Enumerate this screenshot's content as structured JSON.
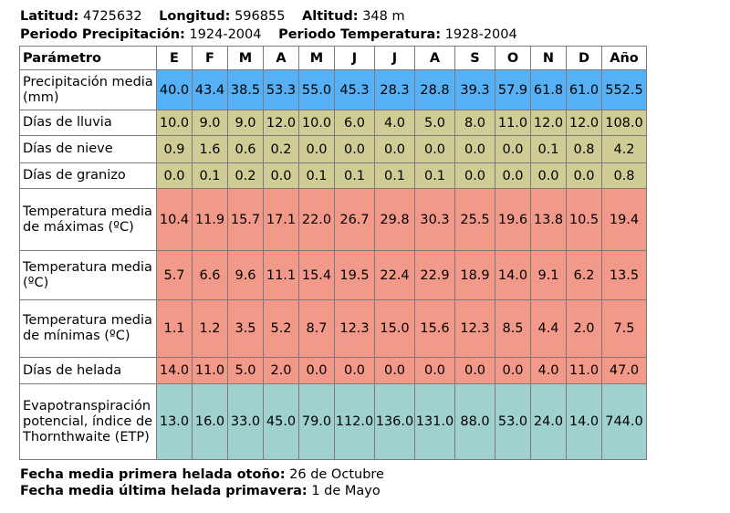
{
  "header": {
    "latitud_label": "Latitud:",
    "latitud_value": "4725632",
    "longitud_label": "Longitud:",
    "longitud_value": "596855",
    "altitud_label": "Altitud:",
    "altitud_value": "348 m",
    "periodo_precip_label": "Periodo Precipitación:",
    "periodo_precip_value": "1924-2004",
    "periodo_temp_label": "Periodo Temperatura:",
    "periodo_temp_value": "1928-2004"
  },
  "table": {
    "columns": [
      "Parámetro",
      "E",
      "F",
      "M",
      "A",
      "M",
      "J",
      "J",
      "A",
      "S",
      "O",
      "N",
      "D",
      "Año"
    ],
    "rows": [
      {
        "label": "Precipitación media (mm)",
        "values": [
          "40.0",
          "43.4",
          "38.5",
          "53.3",
          "55.0",
          "45.3",
          "28.3",
          "28.8",
          "39.3",
          "57.9",
          "61.8",
          "61.0",
          "552.5"
        ]
      },
      {
        "label": "Días de lluvia",
        "values": [
          "10.0",
          "9.0",
          "9.0",
          "12.0",
          "10.0",
          "6.0",
          "4.0",
          "5.0",
          "8.0",
          "11.0",
          "12.0",
          "12.0",
          "108.0"
        ]
      },
      {
        "label": "Días de nieve",
        "values": [
          "0.9",
          "1.6",
          "0.6",
          "0.2",
          "0.0",
          "0.0",
          "0.0",
          "0.0",
          "0.0",
          "0.0",
          "0.1",
          "0.8",
          "4.2"
        ]
      },
      {
        "label": "Días de granizo",
        "values": [
          "0.0",
          "0.1",
          "0.2",
          "0.0",
          "0.1",
          "0.1",
          "0.1",
          "0.1",
          "0.0",
          "0.0",
          "0.0",
          "0.0",
          "0.8"
        ]
      },
      {
        "label": "Temperatura media de máximas (ºC)",
        "values": [
          "10.4",
          "11.9",
          "15.7",
          "17.1",
          "22.0",
          "26.7",
          "29.8",
          "30.3",
          "25.5",
          "19.6",
          "13.8",
          "10.5",
          "19.4"
        ]
      },
      {
        "label": "Temperatura media (ºC)",
        "values": [
          "5.7",
          "6.6",
          "9.6",
          "11.1",
          "15.4",
          "19.5",
          "22.4",
          "22.9",
          "18.9",
          "14.0",
          "9.1",
          "6.2",
          "13.5"
        ]
      },
      {
        "label": "Temperatura media de mínimas (ºC)",
        "values": [
          "1.1",
          "1.2",
          "3.5",
          "5.2",
          "8.7",
          "12.3",
          "15.0",
          "15.6",
          "12.3",
          "8.5",
          "4.4",
          "2.0",
          "7.5"
        ]
      },
      {
        "label": "Días de helada",
        "values": [
          "14.0",
          "11.0",
          "5.0",
          "2.0",
          "0.0",
          "0.0",
          "0.0",
          "0.0",
          "0.0",
          "0.0",
          "4.0",
          "11.0",
          "47.0"
        ]
      },
      {
        "label": "Evapotranspiración potencial, índice de Thornthwaite (ETP)",
        "values": [
          "13.0",
          "16.0",
          "33.0",
          "45.0",
          "79.0",
          "112.0",
          "136.0",
          "131.0",
          "88.0",
          "53.0",
          "24.0",
          "14.0",
          "744.0"
        ]
      }
    ]
  },
  "footer": {
    "primera_label": "Fecha media primera helada otoño:",
    "primera_value": "26 de Octubre",
    "ultima_label": "Fecha media última helada primavera:",
    "ultima_value": "1 de Mayo"
  },
  "colors": {
    "precip": "#56b0f5",
    "dias": "#cfcc96",
    "temp": "#f3998a",
    "etp": "#9fd1cf"
  }
}
